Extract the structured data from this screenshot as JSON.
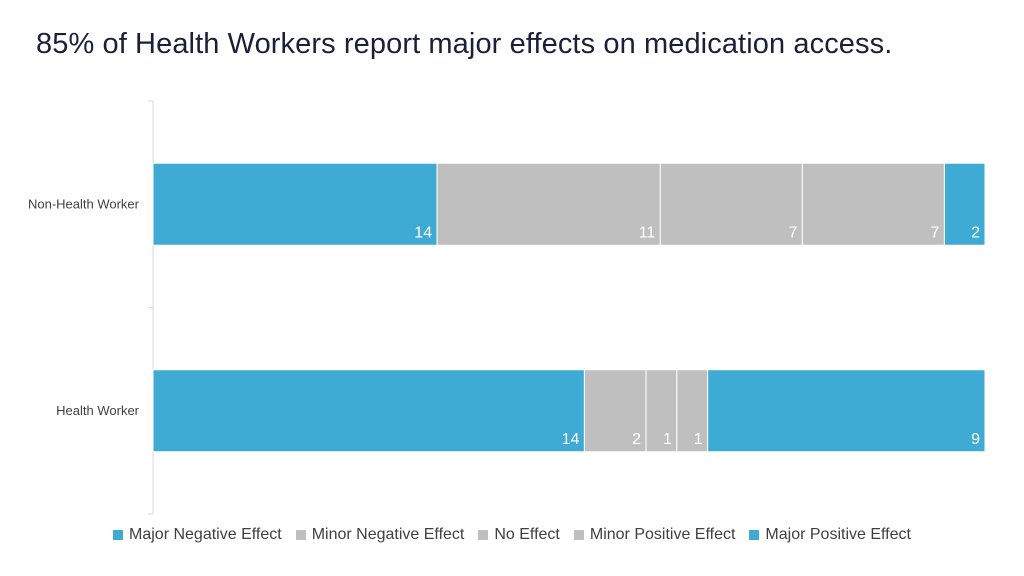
{
  "title": "85% of Health Workers report major effects on medication access.",
  "chart_data": {
    "type": "bar",
    "orientation": "horizontal",
    "stacked": true,
    "normalized": true,
    "categories": [
      "Non-Health Worker",
      "Health Worker"
    ],
    "series": [
      {
        "name": "Major Negative Effect",
        "values": [
          14,
          14
        ],
        "color": "#3eabd5"
      },
      {
        "name": "Minor Negative Effect",
        "values": [
          11,
          2
        ],
        "color": "#bfbfbf"
      },
      {
        "name": "No Effect",
        "values": [
          7,
          1
        ],
        "color": "#bfbfbf"
      },
      {
        "name": "Minor Positive Effect",
        "values": [
          7,
          1
        ],
        "color": "#bfbfbf"
      },
      {
        "name": "Major Positive Effect",
        "values": [
          2,
          9
        ],
        "color": "#3eabd5"
      }
    ],
    "data_labels": true,
    "grid": false,
    "legend_position": "bottom"
  }
}
